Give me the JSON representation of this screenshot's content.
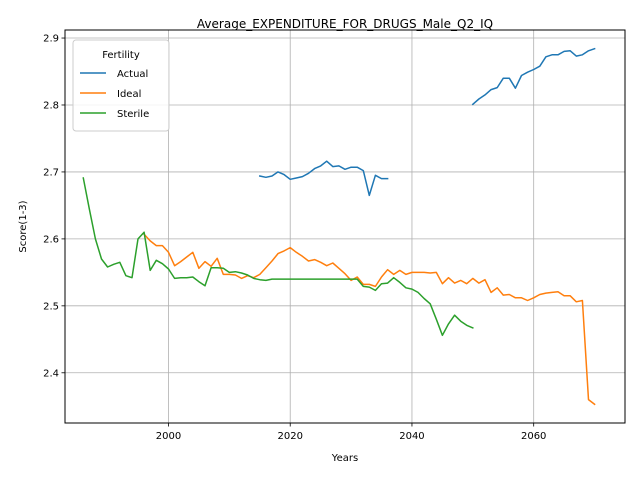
{
  "chart_data": {
    "type": "line",
    "title": "Average_EXPENDITURE_FOR_DRUGS_Male_Q2_IQ",
    "xlabel": "Years",
    "ylabel": "Score(1-3)",
    "xlim": [
      1983,
      2075
    ],
    "ylim": [
      2.325,
      2.912
    ],
    "xticks": [
      2000,
      2020,
      2040,
      2060
    ],
    "yticks": [
      2.4,
      2.5,
      2.6,
      2.7,
      2.8,
      2.9
    ],
    "grid": true,
    "legend": {
      "title": "Fertility",
      "placement": "top-left"
    },
    "series": [
      {
        "name": "Actual",
        "color": "#1f77b4",
        "x": [
          2015,
          2016,
          2017,
          2018,
          2019,
          2020,
          2021,
          2022,
          2023,
          2024,
          2025,
          2026,
          2027,
          2028,
          2029,
          2030,
          2031,
          2032,
          2033,
          2034,
          2035,
          2036,
          2050,
          2051,
          2052,
          2053,
          2054,
          2055,
          2056,
          2057,
          2058,
          2059,
          2060,
          2061,
          2062,
          2063,
          2064,
          2065,
          2066,
          2067,
          2068,
          2069,
          2070
        ],
        "y": [
          2.694,
          2.692,
          2.694,
          2.7,
          2.696,
          2.689,
          2.691,
          2.693,
          2.698,
          2.705,
          2.709,
          2.716,
          2.708,
          2.709,
          2.704,
          2.707,
          2.707,
          2.702,
          2.665,
          2.695,
          2.69,
          2.69,
          2.801,
          2.809,
          2.815,
          2.823,
          2.826,
          2.84,
          2.84,
          2.825,
          2.844,
          2.849,
          2.853,
          2.858,
          2.872,
          2.875,
          2.875,
          2.88,
          2.881,
          2.873,
          2.875,
          2.881,
          2.884
        ]
      },
      {
        "name": "Ideal",
        "color": "#ff7f0e",
        "x": [
          1996,
          1997,
          1998,
          1999,
          2000,
          2001,
          2002,
          2003,
          2004,
          2005,
          2006,
          2007,
          2008,
          2009,
          2010,
          2011,
          2012,
          2013,
          2014,
          2015,
          2016,
          2017,
          2018,
          2019,
          2020,
          2021,
          2022,
          2023,
          2024,
          2025,
          2026,
          2027,
          2028,
          2029,
          2030,
          2031,
          2032,
          2033,
          2034,
          2035,
          2036,
          2037,
          2038,
          2039,
          2040,
          2041,
          2042,
          2043,
          2044,
          2045,
          2046,
          2047,
          2048,
          2049,
          2050,
          2051,
          2052,
          2053,
          2054,
          2055,
          2056,
          2057,
          2058,
          2059,
          2060,
          2061,
          2062,
          2063,
          2064,
          2065,
          2066,
          2067,
          2068,
          2069,
          2070
        ],
        "y": [
          2.607,
          2.597,
          2.59,
          2.59,
          2.58,
          2.56,
          2.566,
          2.573,
          2.58,
          2.556,
          2.566,
          2.559,
          2.571,
          2.547,
          2.547,
          2.546,
          2.541,
          2.545,
          2.542,
          2.547,
          2.557,
          2.567,
          2.578,
          2.582,
          2.587,
          2.58,
          2.574,
          2.567,
          2.569,
          2.565,
          2.56,
          2.564,
          2.556,
          2.548,
          2.538,
          2.543,
          2.532,
          2.532,
          2.529,
          2.543,
          2.554,
          2.547,
          2.553,
          2.547,
          2.55,
          2.55,
          2.55,
          2.549,
          2.55,
          2.533,
          2.542,
          2.534,
          2.538,
          2.533,
          2.541,
          2.534,
          2.539,
          2.52,
          2.527,
          2.516,
          2.517,
          2.512,
          2.512,
          2.508,
          2.512,
          2.517,
          2.519,
          2.52,
          2.521,
          2.515,
          2.515,
          2.506,
          2.508,
          2.36,
          2.353
        ]
      },
      {
        "name": "Sterile",
        "color": "#2ca02c",
        "x": [
          1986,
          1987,
          1988,
          1989,
          1990,
          1991,
          1992,
          1993,
          1994,
          1995,
          1996,
          1997,
          1998,
          1999,
          2000,
          2001,
          2002,
          2003,
          2004,
          2005,
          2006,
          2007,
          2008,
          2009,
          2010,
          2011,
          2012,
          2013,
          2014,
          2015,
          2016,
          2017,
          2018,
          2019,
          2020,
          2021,
          2022,
          2023,
          2024,
          2025,
          2026,
          2027,
          2028,
          2029,
          2030,
          2031,
          2032,
          2033,
          2034,
          2035,
          2036,
          2037,
          2038,
          2039,
          2040,
          2041,
          2042,
          2043,
          2044,
          2045,
          2046,
          2047,
          2048,
          2049,
          2050
        ],
        "y": [
          2.691,
          2.645,
          2.6,
          2.57,
          2.558,
          2.562,
          2.565,
          2.545,
          2.542,
          2.6,
          2.61,
          2.553,
          2.568,
          2.563,
          2.555,
          2.541,
          2.542,
          2.542,
          2.543,
          2.536,
          2.53,
          2.557,
          2.557,
          2.556,
          2.55,
          2.551,
          2.549,
          2.546,
          2.541,
          2.539,
          2.538,
          2.54,
          2.54,
          2.54,
          2.54,
          2.54,
          2.54,
          2.54,
          2.54,
          2.54,
          2.54,
          2.54,
          2.54,
          2.54,
          2.54,
          2.54,
          2.529,
          2.528,
          2.523,
          2.533,
          2.534,
          2.542,
          2.535,
          2.527,
          2.525,
          2.52,
          2.511,
          2.503,
          2.48,
          2.456,
          2.473,
          2.486,
          2.477,
          2.471,
          2.467
        ]
      }
    ]
  }
}
